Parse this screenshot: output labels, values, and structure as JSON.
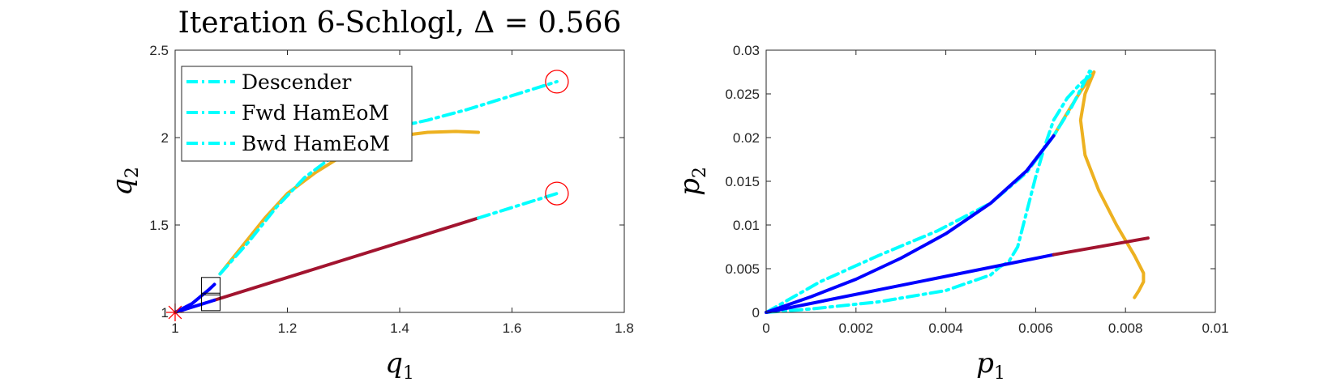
{
  "chart_data": [
    {
      "type": "line",
      "title": "Iteration 6-Schlogl, Δ = 0.566",
      "title_parts": {
        "prefix": "Iteration 6-Schlogl, ",
        "symbol": "Δ",
        "eq": " = 0.566"
      },
      "xlabel": {
        "var": "q",
        "sub": "1"
      },
      "ylabel": {
        "var": "q",
        "sub": "2"
      },
      "xlim": [
        1,
        1.8
      ],
      "ylim": [
        1,
        2.5
      ],
      "xticks": [
        "1",
        "1.2",
        "1.4",
        "1.6",
        "1.8"
      ],
      "yticks": [
        "1",
        "1.5",
        "2",
        "2.5"
      ],
      "grid": false,
      "legend_position": "top-left",
      "legend": [
        "Descender",
        "Fwd HamEoM",
        "Bwd HamEoM"
      ],
      "colors": {
        "cyan": "#00FFFF",
        "blue": "#0000FF",
        "orange": "#EDB120",
        "maroon": "#A2142F",
        "red": "#FF0000"
      },
      "series": [
        {
          "color": "#EDB120",
          "style": "solid",
          "points": [
            [
              1.08,
              1.22
            ],
            [
              1.12,
              1.38
            ],
            [
              1.16,
              1.54
            ],
            [
              1.2,
              1.68
            ],
            [
              1.25,
              1.8
            ],
            [
              1.3,
              1.9
            ],
            [
              1.35,
              1.97
            ],
            [
              1.4,
              2.01
            ],
            [
              1.45,
              2.03
            ],
            [
              1.5,
              2.035
            ],
            [
              1.54,
              2.03
            ]
          ]
        },
        {
          "color": "#00FFFF",
          "style": "dashdot",
          "points": [
            [
              1.08,
              1.22
            ],
            [
              1.13,
              1.4
            ],
            [
              1.18,
              1.6
            ],
            [
              1.23,
              1.77
            ],
            [
              1.28,
              1.89
            ],
            [
              1.33,
              1.98
            ],
            [
              1.38,
              2.05
            ],
            [
              1.45,
              2.1
            ],
            [
              1.52,
              2.16
            ],
            [
              1.6,
              2.24
            ],
            [
              1.68,
              2.32
            ]
          ]
        },
        {
          "color": "#0000FF",
          "style": "solid",
          "points": [
            [
              1,
              1
            ],
            [
              1.03,
              1.05
            ],
            [
              1.06,
              1.13
            ],
            [
              1.07,
              1.16
            ]
          ]
        },
        {
          "color": "#A2142F",
          "style": "solid",
          "points": [
            [
              1.07,
              1.07
            ],
            [
              1.54,
              1.54
            ]
          ]
        },
        {
          "color": "#0000FF",
          "style": "solid",
          "points": [
            [
              1,
              1
            ],
            [
              1.07,
              1.07
            ]
          ]
        },
        {
          "color": "#00FFFF",
          "style": "dashdot",
          "points": [
            [
              1.54,
              1.54
            ],
            [
              1.6,
              1.6
            ],
            [
              1.68,
              1.68
            ]
          ]
        }
      ],
      "markers": [
        {
          "type": "circle",
          "color": "#FF0000",
          "x": 1.68,
          "y": 2.32
        },
        {
          "type": "circle",
          "color": "#FF0000",
          "x": 1.68,
          "y": 1.68
        },
        {
          "type": "star",
          "color": "#FF0000",
          "x": 1.0,
          "y": 1.0
        }
      ],
      "boxes": [
        {
          "x": [
            1.047,
            1.08
          ],
          "y": [
            1.1,
            1.2
          ]
        },
        {
          "x": [
            1.047,
            1.08
          ],
          "y": [
            1.01,
            1.11
          ]
        }
      ]
    },
    {
      "type": "line",
      "title": "",
      "xlabel": {
        "var": "p",
        "sub": "1"
      },
      "ylabel": {
        "var": "p",
        "sub": "2"
      },
      "xlim": [
        0,
        0.01
      ],
      "ylim": [
        0,
        0.03
      ],
      "xticks": [
        "0",
        "0.002",
        "0.004",
        "0.006",
        "0.008",
        "0.01"
      ],
      "yticks": [
        "0",
        "0.005",
        "0.01",
        "0.015",
        "0.02",
        "0.025",
        "0.03"
      ],
      "grid": false,
      "series": [
        {
          "color": "#EDB120",
          "style": "solid",
          "points": [
            [
              0.0064,
              0.0202
            ],
            [
              0.0067,
              0.0228
            ],
            [
              0.007,
              0.0253
            ],
            [
              0.0073,
              0.0275
            ],
            [
              0.0071,
              0.025
            ],
            [
              0.007,
              0.022
            ],
            [
              0.0071,
              0.018
            ],
            [
              0.0074,
              0.014
            ],
            [
              0.0078,
              0.01
            ],
            [
              0.0082,
              0.0065
            ],
            [
              0.0084,
              0.0045
            ],
            [
              0.0084,
              0.0035
            ],
            [
              0.0083,
              0.0025
            ],
            [
              0.0082,
              0.0017
            ]
          ]
        },
        {
          "color": "#00FFFF",
          "style": "dashdot",
          "points": [
            [
              0,
              0
            ],
            [
              0.0012,
              0.0035
            ],
            [
              0.0025,
              0.0065
            ],
            [
              0.0038,
              0.0093
            ],
            [
              0.005,
              0.0125
            ],
            [
              0.0058,
              0.016
            ],
            [
              0.0064,
              0.0202
            ],
            [
              0.0068,
              0.0235
            ],
            [
              0.0071,
              0.0265
            ],
            [
              0.0072,
              0.0276
            ],
            [
              0.00725,
              0.0275
            ],
            [
              0.0072,
              0.027
            ],
            [
              0.007,
              0.0262
            ],
            [
              0.0067,
              0.0245
            ],
            [
              0.0064,
              0.022
            ],
            [
              0.0062,
              0.019
            ],
            [
              0.006,
              0.0155
            ],
            [
              0.0058,
              0.0115
            ],
            [
              0.0056,
              0.0075
            ],
            [
              0.0054,
              0.0058
            ],
            [
              0.0052,
              0.0052
            ],
            [
              0.005,
              0.0043
            ],
            [
              0.004,
              0.0025
            ],
            [
              0.0025,
              0.0012
            ],
            [
              0.001,
              0.0004
            ],
            [
              0,
              0
            ]
          ]
        },
        {
          "color": "#0000FF",
          "style": "solid",
          "points": [
            [
              0,
              0
            ],
            [
              0.001,
              0.0018
            ],
            [
              0.002,
              0.0038
            ],
            [
              0.003,
              0.0062
            ],
            [
              0.004,
              0.009
            ],
            [
              0.005,
              0.0125
            ],
            [
              0.0058,
              0.0162
            ],
            [
              0.0064,
              0.0202
            ]
          ]
        },
        {
          "color": "#0000FF",
          "style": "solid",
          "points": [
            [
              0,
              0
            ],
            [
              0.0064,
              0.0066
            ]
          ]
        },
        {
          "color": "#A2142F",
          "style": "solid",
          "points": [
            [
              0.0064,
              0.0066
            ],
            [
              0.0085,
              0.0085
            ]
          ]
        }
      ]
    }
  ]
}
